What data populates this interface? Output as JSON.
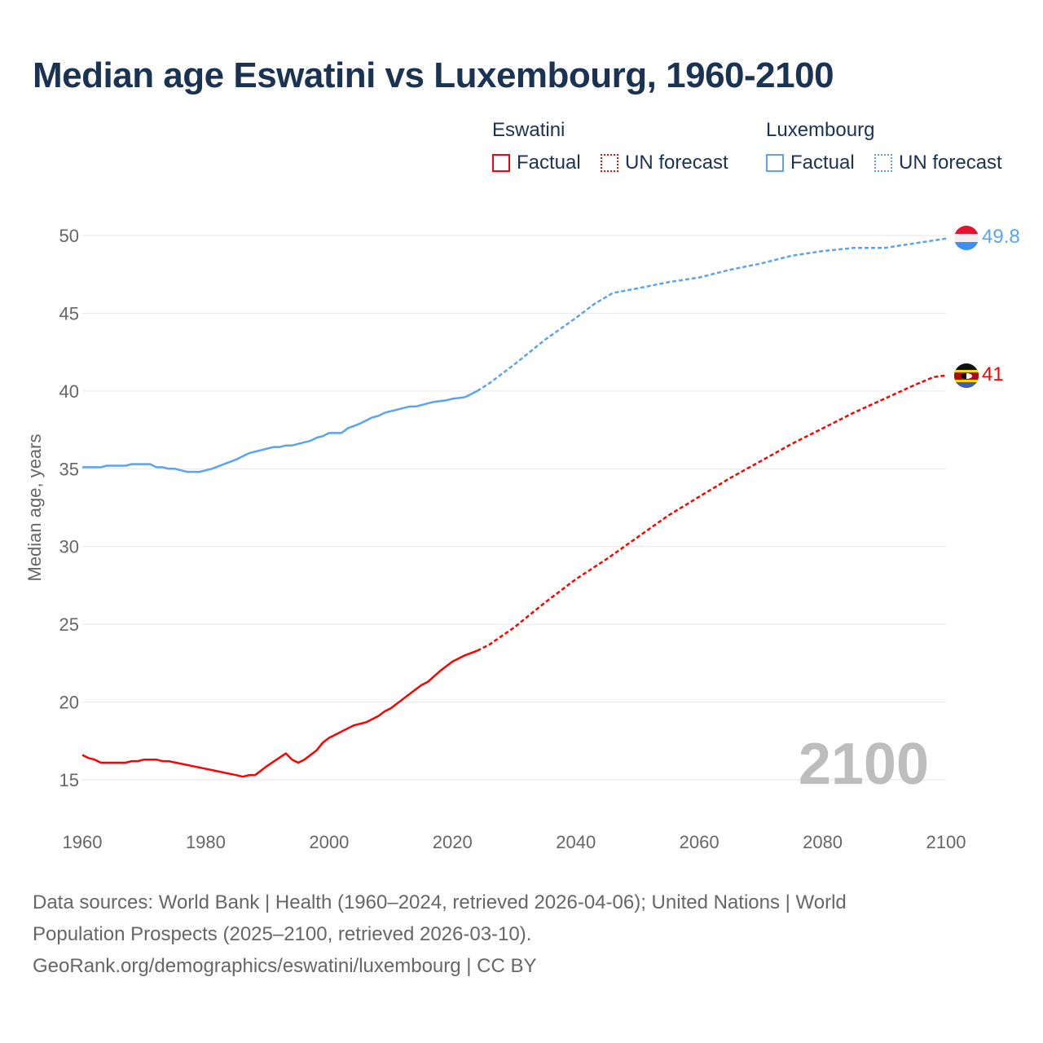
{
  "title": "Median age Eswatini vs Luxembourg, 1960-2100",
  "legend": {
    "groups": [
      {
        "name": "Eswatini",
        "factual": "Factual",
        "forecast": "UN forecast",
        "color": "#ff0000"
      },
      {
        "name": "Luxembourg",
        "factual": "Factual",
        "forecast": "UN forecast",
        "color": "#5ba4ec"
      }
    ]
  },
  "year_watermark": "2100",
  "footer": {
    "line1": "Data sources: World Bank | Health (1960–2024, retrieved 2026-04-06); United Nations | World",
    "line2": "Population Prospects (2025–2100, retrieved 2026-03-10).",
    "line3": "GeoRank.org/demographics/eswatini/luxembourg | CC BY"
  },
  "chart_data": {
    "type": "line",
    "title": "Median age Eswatini vs Luxembourg, 1960-2100",
    "xlabel": "",
    "ylabel": "Median age, years",
    "xlim": [
      1960,
      2100
    ],
    "ylim": [
      15,
      50
    ],
    "xticks": [
      1960,
      1980,
      2000,
      2020,
      2040,
      2060,
      2080,
      2100
    ],
    "yticks": [
      15,
      20,
      25,
      30,
      35,
      40,
      45,
      50
    ],
    "grid": true,
    "legend_position": "top-right",
    "series": [
      {
        "name": "Eswatini",
        "color": "#ff0000",
        "end_label": "41",
        "factual": [
          [
            1960,
            16.6
          ],
          [
            1961,
            16.4
          ],
          [
            1962,
            16.3
          ],
          [
            1963,
            16.1
          ],
          [
            1967,
            16.1
          ],
          [
            1968,
            16.2
          ],
          [
            1969,
            16.2
          ],
          [
            1970,
            16.3
          ],
          [
            1972,
            16.3
          ],
          [
            1973,
            16.2
          ],
          [
            1974,
            16.2
          ],
          [
            1985,
            15.3
          ],
          [
            1986,
            15.2
          ],
          [
            1987,
            15.3
          ],
          [
            1988,
            15.3
          ],
          [
            1990,
            15.9
          ],
          [
            1993,
            16.7
          ],
          [
            1994,
            16.3
          ],
          [
            1995,
            16.1
          ],
          [
            1996,
            16.3
          ],
          [
            1998,
            16.9
          ],
          [
            1999,
            17.4
          ],
          [
            2000,
            17.7
          ],
          [
            2001,
            17.9
          ],
          [
            2002,
            18.1
          ],
          [
            2004,
            18.5
          ],
          [
            2006,
            18.7
          ],
          [
            2008,
            19.1
          ],
          [
            2009,
            19.4
          ],
          [
            2010,
            19.6
          ],
          [
            2012,
            20.2
          ],
          [
            2013,
            20.5
          ],
          [
            2014,
            20.8
          ],
          [
            2015,
            21.1
          ],
          [
            2016,
            21.3
          ],
          [
            2018,
            22.0
          ],
          [
            2020,
            22.6
          ],
          [
            2022,
            23.0
          ],
          [
            2024,
            23.3
          ]
        ],
        "forecast": [
          [
            2024,
            23.3
          ],
          [
            2026,
            23.7
          ],
          [
            2030,
            24.8
          ],
          [
            2035,
            26.4
          ],
          [
            2040,
            27.9
          ],
          [
            2045,
            29.2
          ],
          [
            2050,
            30.6
          ],
          [
            2055,
            32.0
          ],
          [
            2060,
            33.2
          ],
          [
            2065,
            34.4
          ],
          [
            2070,
            35.5
          ],
          [
            2075,
            36.6
          ],
          [
            2080,
            37.6
          ],
          [
            2085,
            38.6
          ],
          [
            2090,
            39.5
          ],
          [
            2095,
            40.4
          ],
          [
            2098,
            40.9
          ],
          [
            2100,
            41.0
          ]
        ]
      },
      {
        "name": "Luxembourg",
        "color": "#5ba4ec",
        "end_label": "49.8",
        "factual": [
          [
            1960,
            35.1
          ],
          [
            1963,
            35.1
          ],
          [
            1964,
            35.2
          ],
          [
            1967,
            35.2
          ],
          [
            1968,
            35.3
          ],
          [
            1971,
            35.3
          ],
          [
            1972,
            35.1
          ],
          [
            1973,
            35.1
          ],
          [
            1974,
            35.0
          ],
          [
            1975,
            35.0
          ],
          [
            1977,
            34.8
          ],
          [
            1979,
            34.8
          ],
          [
            1981,
            35.0
          ],
          [
            1983,
            35.3
          ],
          [
            1985,
            35.6
          ],
          [
            1987,
            36.0
          ],
          [
            1990,
            36.3
          ],
          [
            1991,
            36.4
          ],
          [
            1992,
            36.4
          ],
          [
            1993,
            36.5
          ],
          [
            1994,
            36.5
          ],
          [
            1996,
            36.7
          ],
          [
            1997,
            36.8
          ],
          [
            1998,
            37.0
          ],
          [
            1999,
            37.1
          ],
          [
            2000,
            37.3
          ],
          [
            2002,
            37.3
          ],
          [
            2003,
            37.6
          ],
          [
            2005,
            37.9
          ],
          [
            2007,
            38.3
          ],
          [
            2008,
            38.4
          ],
          [
            2009,
            38.6
          ],
          [
            2011,
            38.8
          ],
          [
            2013,
            39.0
          ],
          [
            2014,
            39.0
          ],
          [
            2016,
            39.2
          ],
          [
            2017,
            39.3
          ],
          [
            2019,
            39.4
          ],
          [
            2020,
            39.5
          ],
          [
            2022,
            39.6
          ],
          [
            2023,
            39.8
          ],
          [
            2024,
            40.0
          ]
        ],
        "forecast": [
          [
            2024,
            40.0
          ],
          [
            2026,
            40.5
          ],
          [
            2030,
            41.7
          ],
          [
            2035,
            43.3
          ],
          [
            2040,
            44.7
          ],
          [
            2043,
            45.6
          ],
          [
            2046,
            46.3
          ],
          [
            2050,
            46.6
          ],
          [
            2055,
            47.0
          ],
          [
            2060,
            47.3
          ],
          [
            2065,
            47.8
          ],
          [
            2070,
            48.2
          ],
          [
            2075,
            48.7
          ],
          [
            2080,
            49.0
          ],
          [
            2085,
            49.2
          ],
          [
            2090,
            49.2
          ],
          [
            2095,
            49.5
          ],
          [
            2100,
            49.8
          ]
        ]
      }
    ]
  }
}
